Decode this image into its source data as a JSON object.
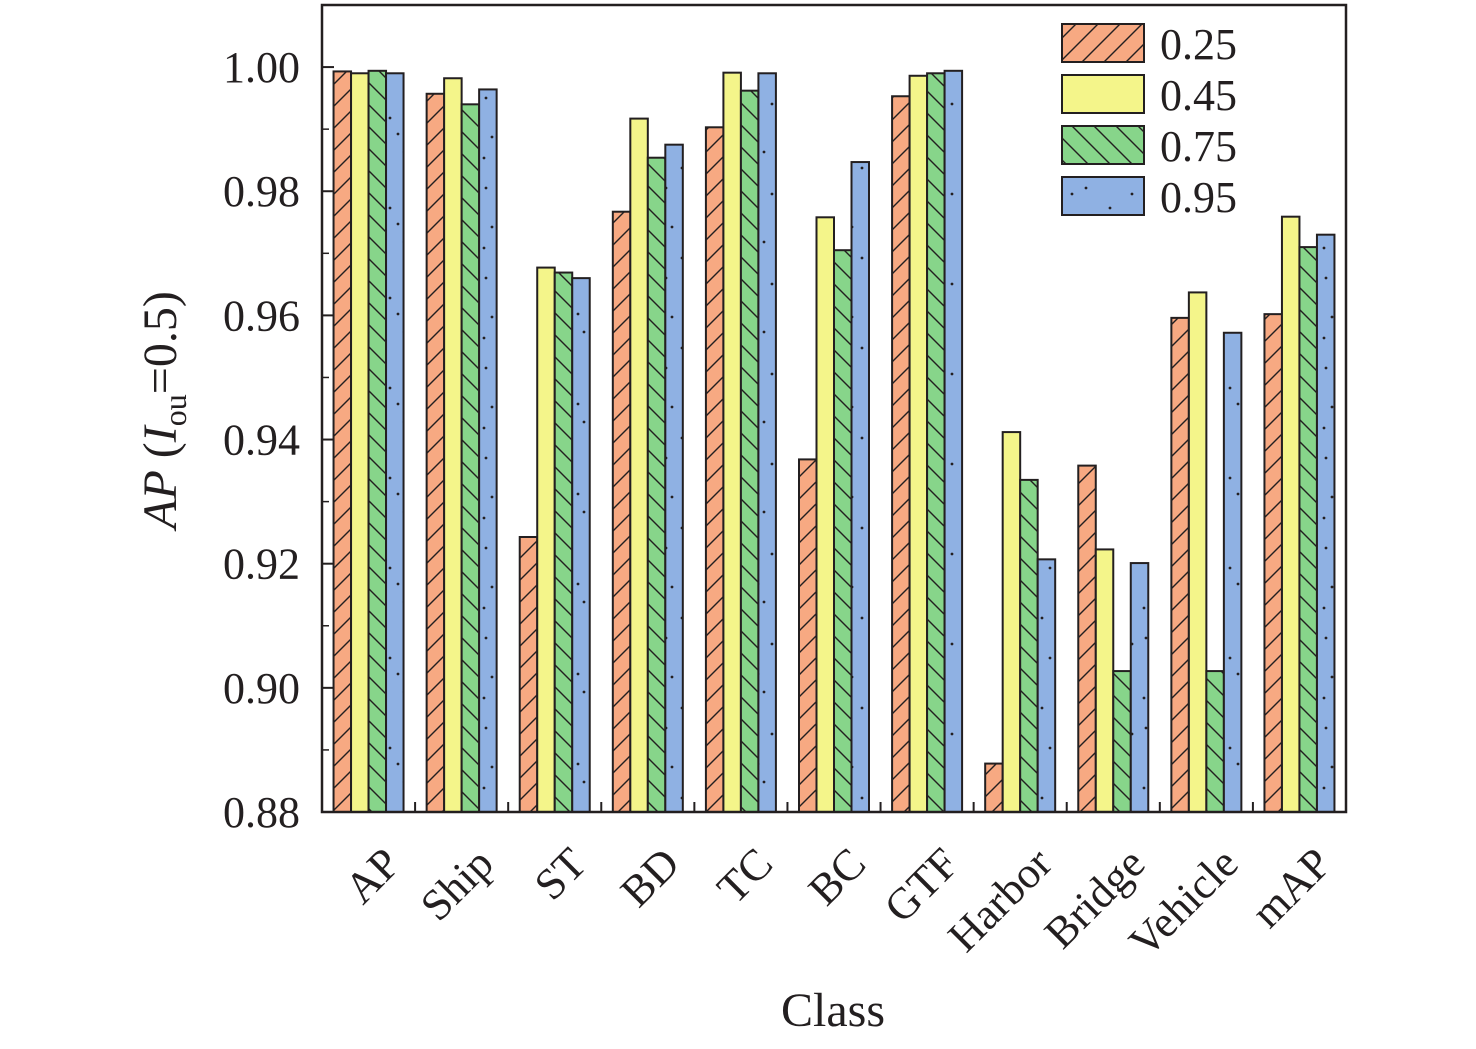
{
  "chart_data": {
    "type": "bar",
    "title": "",
    "xlabel": "Class",
    "ylabel": {
      "prefix": "AP (",
      "var": "I",
      "sub": "ou",
      "suffix": "=0.5)"
    },
    "ylim": [
      0.88,
      1.01
    ],
    "yticks": [
      "0.88",
      "0.90",
      "0.92",
      "0.94",
      "0.96",
      "0.98",
      "1.00"
    ],
    "ytick_values": [
      0.88,
      0.9,
      0.92,
      0.94,
      0.96,
      0.98,
      1.0
    ],
    "categories": [
      "AP",
      "Ship",
      "ST",
      "BD",
      "TC",
      "BC",
      "GTF",
      "Harbor",
      "Bridge",
      "Vehicle",
      "mAP"
    ],
    "legend_position": "top-right",
    "series": [
      {
        "name": "0.25",
        "color": "#f7a982",
        "pattern": "diagonal-forward",
        "values": [
          0.9993,
          0.9957,
          0.9243,
          0.9767,
          0.9903,
          0.9368,
          0.9953,
          0.8878,
          0.9358,
          0.9596,
          0.9602
        ]
      },
      {
        "name": "0.45",
        "color": "#f4f58a",
        "pattern": "none",
        "values": [
          0.999,
          0.9982,
          0.9677,
          0.9917,
          0.9991,
          0.9758,
          0.9986,
          0.9412,
          0.9223,
          0.9637,
          0.9759
        ]
      },
      {
        "name": "0.75",
        "color": "#87d58a",
        "pattern": "diagonal-back",
        "values": [
          0.9994,
          0.994,
          0.9669,
          0.9854,
          0.9962,
          0.9705,
          0.999,
          0.9335,
          0.9027,
          0.9027,
          0.971
        ]
      },
      {
        "name": "0.95",
        "color": "#8fb1e3",
        "pattern": "dots",
        "values": [
          0.999,
          0.9964,
          0.966,
          0.9875,
          0.999,
          0.9847,
          0.9994,
          0.9207,
          0.9201,
          0.9572,
          0.973
        ]
      }
    ]
  }
}
